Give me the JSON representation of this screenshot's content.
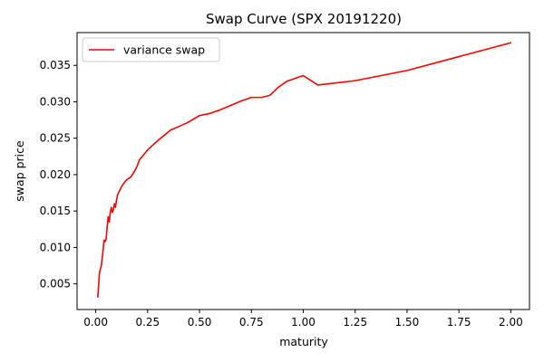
{
  "chart_data": {
    "type": "line",
    "title": "Swap Curve (SPX 20191220)",
    "xlabel": "maturity",
    "ylabel": "swap price",
    "xlim": [
      -0.09,
      2.09
    ],
    "ylim": [
      0.00148,
      0.0395
    ],
    "xticks": [
      0.0,
      0.25,
      0.5,
      0.75,
      1.0,
      1.25,
      1.5,
      1.75,
      2.0
    ],
    "xtick_labels": [
      "0.00",
      "0.25",
      "0.50",
      "0.75",
      "1.00",
      "1.25",
      "1.50",
      "1.75",
      "2.00"
    ],
    "yticks": [
      0.005,
      0.01,
      0.015,
      0.02,
      0.025,
      0.03,
      0.035
    ],
    "ytick_labels": [
      "0.005",
      "0.010",
      "0.015",
      "0.020",
      "0.025",
      "0.030",
      "0.035"
    ],
    "grid": false,
    "legend_position": "top-left",
    "series": [
      {
        "name": "variance swap",
        "color": "#ff0000",
        "x": [
          0.01,
          0.013,
          0.018,
          0.022,
          0.027,
          0.035,
          0.04,
          0.045,
          0.05,
          0.055,
          0.06,
          0.065,
          0.07,
          0.075,
          0.08,
          0.085,
          0.09,
          0.095,
          0.1,
          0.105,
          0.11,
          0.12,
          0.13,
          0.14,
          0.15,
          0.17,
          0.19,
          0.2,
          0.21,
          0.25,
          0.3,
          0.36,
          0.4,
          0.44,
          0.5,
          0.55,
          0.6,
          0.65,
          0.7,
          0.75,
          0.8,
          0.84,
          0.88,
          0.92,
          1.0,
          1.07,
          1.25,
          1.5,
          1.75,
          2.0
        ],
        "y": [
          0.0032,
          0.0045,
          0.0065,
          0.007,
          0.0075,
          0.0095,
          0.011,
          0.0108,
          0.0112,
          0.0128,
          0.0142,
          0.0135,
          0.0148,
          0.0155,
          0.0148,
          0.0152,
          0.016,
          0.0155,
          0.0165,
          0.0172,
          0.0175,
          0.0181,
          0.0186,
          0.019,
          0.0193,
          0.0197,
          0.0206,
          0.0212,
          0.022,
          0.0234,
          0.0247,
          0.0261,
          0.0266,
          0.0271,
          0.0281,
          0.0284,
          0.0289,
          0.0295,
          0.0301,
          0.0306,
          0.0306,
          0.0309,
          0.032,
          0.0328,
          0.0336,
          0.0323,
          0.0329,
          0.0343,
          0.0362,
          0.0381
        ]
      }
    ]
  }
}
